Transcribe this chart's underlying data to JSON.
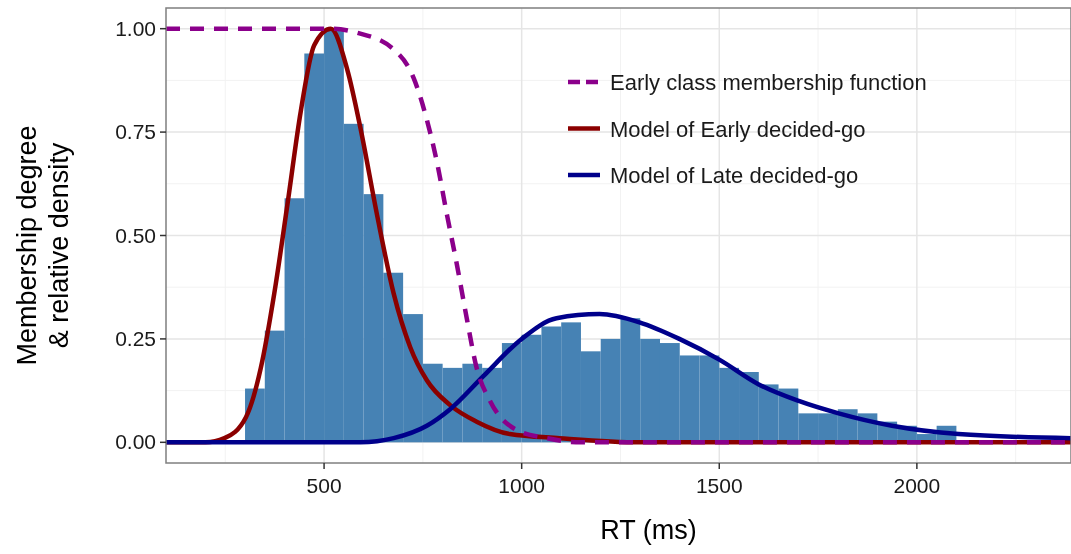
{
  "chart_data": {
    "type": "histogram",
    "xlabel": "RT (ms)",
    "ylabel": "Membership degree\n& relative density",
    "bins": [
      300,
      350,
      400,
      450,
      500,
      550,
      600,
      650,
      700,
      750,
      800,
      850,
      900,
      950,
      1000,
      1050,
      1100,
      1150,
      1200,
      1250,
      1300,
      1350,
      1400,
      1450,
      1500,
      1550,
      1600,
      1650,
      1700,
      1750,
      1800,
      1850,
      1900,
      1950,
      2000,
      2050,
      2100
    ],
    "values": [
      0.13,
      0.27,
      0.59,
      0.94,
      1.0,
      0.77,
      0.6,
      0.41,
      0.31,
      0.19,
      0.18,
      0.19,
      0.18,
      0.24,
      0.26,
      0.28,
      0.29,
      0.22,
      0.25,
      0.3,
      0.25,
      0.24,
      0.21,
      0.21,
      0.18,
      0.17,
      0.14,
      0.13,
      0.07,
      0.07,
      0.08,
      0.07,
      0.05,
      0.04,
      0.02,
      0.04
    ],
    "color": "#4682b4",
    "series": [
      {
        "name": "Early class membership function",
        "type": "line",
        "line_style": "dashed",
        "color": "#8b008b",
        "x": [
          100,
          300,
          520,
          584,
          676,
          727,
          760,
          785,
          811,
          836,
          861,
          886,
          920,
          987,
          1063,
          1150,
          1500,
          2000,
          2390
        ],
        "values": [
          1,
          1,
          1,
          0.99,
          0.95,
          0.88,
          0.78,
          0.68,
          0.55,
          0.43,
          0.3,
          0.18,
          0.1,
          0.03,
          0.01,
          0,
          0,
          0,
          0
        ]
      },
      {
        "name": "Model of Early decided-go",
        "type": "line",
        "line_style": "solid",
        "color": "#8b0000",
        "x": [
          100,
          200,
          248,
          302,
          340,
          374,
          408,
          441,
          475,
          517,
          559,
          592,
          634,
          676,
          718,
          760,
          819,
          886,
          970,
          1096,
          1300,
          1700,
          2390
        ],
        "values": [
          0,
          0,
          0.01,
          0.06,
          0.18,
          0.36,
          0.58,
          0.8,
          0.96,
          1.0,
          0.9,
          0.76,
          0.55,
          0.36,
          0.23,
          0.15,
          0.09,
          0.05,
          0.02,
          0.01,
          0,
          0,
          0
        ]
      },
      {
        "name": "Model of Late decided-go",
        "type": "line",
        "line_style": "solid",
        "color": "#00008b",
        "x": [
          100,
          500,
          592,
          676,
          760,
          819,
          903,
          1000,
          1088,
          1197,
          1298,
          1399,
          1500,
          1600,
          1701,
          1802,
          1937,
          2105,
          2390
        ],
        "values": [
          0,
          0,
          0,
          0.01,
          0.04,
          0.08,
          0.16,
          0.25,
          0.3,
          0.31,
          0.29,
          0.25,
          0.2,
          0.14,
          0.1,
          0.07,
          0.04,
          0.02,
          0.01
        ]
      }
    ],
    "xlim": [
      100,
      2390
    ],
    "ylim": [
      -0.05,
      1.05
    ],
    "xticks": [
      500,
      1000,
      1500,
      2000
    ],
    "yticks": [
      {
        "value": 0,
        "label": "0.00"
      },
      {
        "value": 0.25,
        "label": "0.25"
      },
      {
        "value": 0.5,
        "label": "0.50"
      },
      {
        "value": 0.75,
        "label": "0.75"
      },
      {
        "value": 1,
        "label": "1.00"
      }
    ],
    "grid": true,
    "legend": "top right"
  }
}
